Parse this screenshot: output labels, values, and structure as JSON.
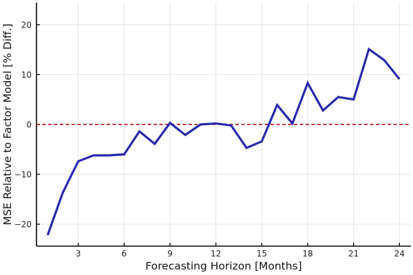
{
  "chart_data": {
    "type": "line",
    "title": "",
    "xlabel": "Forecasting Horizon [Months]",
    "ylabel": "MSE Relative to Factor Model [% Diff.]",
    "x": [
      1,
      2,
      3,
      4,
      5,
      6,
      7,
      8,
      9,
      10,
      11,
      12,
      13,
      14,
      15,
      16,
      17,
      18,
      19,
      20,
      21,
      22,
      23,
      24
    ],
    "series": [
      {
        "name": "MSE relative to factor model",
        "color": "#2828aa",
        "values": [
          -22.2,
          -13.6,
          -7.4,
          -6.2,
          -6.2,
          -6.0,
          -1.4,
          -3.9,
          0.3,
          -2.1,
          0.0,
          0.2,
          -0.2,
          -4.7,
          -3.4,
          3.9,
          0.2,
          8.3,
          2.8,
          5.5,
          5.0,
          15.1,
          12.9,
          9.1
        ]
      }
    ],
    "reference_line": {
      "y": 0,
      "color": "#bb2222",
      "style": "dashed"
    },
    "xticks": [
      3,
      6,
      9,
      12,
      15,
      18,
      21,
      24
    ],
    "yticks": [
      -20,
      -10,
      0,
      10,
      20
    ],
    "xlim": [
      0.27,
      24.75
    ],
    "ylim": [
      -24.4,
      24.4
    ],
    "grid": true,
    "legend": "none",
    "colors": {
      "grid": "#e5e5e5",
      "axis": "#000000",
      "tick_label": "#1f1f1f",
      "background": "#ffffff"
    }
  }
}
